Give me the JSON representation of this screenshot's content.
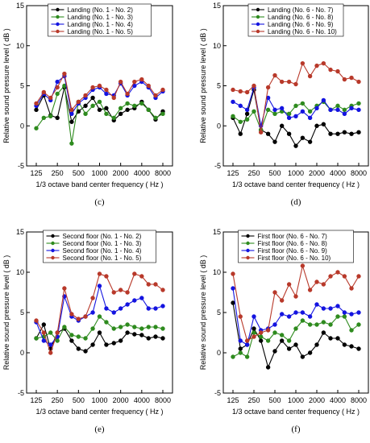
{
  "figure": {
    "colors": {
      "black": "#000000",
      "green": "#2e8b1e",
      "blue": "#1414e0",
      "red": "#b8392a"
    }
  },
  "chart_data": [
    {
      "type": "line",
      "panel_label": "(c)",
      "xlabel": "1/3 octave band center frequency ( Hz )",
      "ylabel": "Relative sound pressure level ( dB )",
      "x_tick_labels": [
        "125",
        "250",
        "500",
        "1000",
        "2000",
        "4000",
        "8000"
      ],
      "ylim": [
        -5,
        15
      ],
      "y_ticks": [
        -5,
        0,
        5,
        10,
        15
      ],
      "x": [
        125,
        160,
        200,
        250,
        315,
        400,
        500,
        630,
        800,
        1000,
        1250,
        1600,
        2000,
        2500,
        3150,
        4000,
        5000,
        6300,
        8000
      ],
      "series": [
        {
          "name": "Landing (No. 1 - No. 2)",
          "color": "#000000",
          "values": [
            2.0,
            3.8,
            1.3,
            1.0,
            4.8,
            0.5,
            1.8,
            2.5,
            3.5,
            2.0,
            2.2,
            0.7,
            1.5,
            2.0,
            2.2,
            3.0,
            2.0,
            0.8,
            1.8
          ]
        },
        {
          "name": "Landing (No. 1 - No. 3)",
          "color": "#2e8b1e",
          "values": [
            -0.3,
            1.0,
            1.2,
            4.0,
            5.0,
            -2.2,
            3.0,
            1.5,
            2.5,
            3.0,
            1.5,
            1.0,
            2.2,
            2.8,
            2.5,
            2.8,
            2.0,
            1.0,
            1.5
          ]
        },
        {
          "name": "Landing (No. 1 - No. 4)",
          "color": "#1414e0",
          "values": [
            2.5,
            4.0,
            3.2,
            5.5,
            6.2,
            1.5,
            2.8,
            3.5,
            4.5,
            4.8,
            4.0,
            3.8,
            5.3,
            3.8,
            5.0,
            5.5,
            4.8,
            3.5,
            4.3
          ]
        },
        {
          "name": "Landing (No. 1 - No. 5)",
          "color": "#b8392a",
          "values": [
            2.8,
            4.2,
            3.5,
            4.8,
            6.5,
            2.0,
            3.0,
            3.8,
            4.8,
            5.0,
            4.5,
            3.5,
            5.5,
            4.0,
            5.5,
            5.8,
            5.0,
            3.8,
            4.5
          ]
        }
      ]
    },
    {
      "type": "line",
      "panel_label": "(d)",
      "xlabel": "1/3 octave band center frequency ( Hz )",
      "ylabel": "Relative sound pressure level ( dB )",
      "x_tick_labels": [
        "125",
        "250",
        "500",
        "1000",
        "2000",
        "4000",
        "8000"
      ],
      "ylim": [
        -5,
        15
      ],
      "y_ticks": [
        -5,
        0,
        5,
        10,
        15
      ],
      "x": [
        125,
        160,
        200,
        250,
        315,
        400,
        500,
        630,
        800,
        1000,
        1250,
        1600,
        2000,
        2500,
        3150,
        4000,
        5000,
        6300,
        8000
      ],
      "series": [
        {
          "name": "Landing (No. 6 - No. 7)",
          "color": "#000000",
          "values": [
            1.0,
            -1.0,
            1.5,
            4.5,
            -0.5,
            -1.0,
            -2.0,
            0.0,
            -1.0,
            -2.5,
            -1.5,
            -2.0,
            0.0,
            0.2,
            -1.0,
            -1.0,
            -0.8,
            -1.0,
            -0.8
          ]
        },
        {
          "name": "Landing (No. 6 - No. 8)",
          "color": "#2e8b1e",
          "values": [
            1.2,
            0.5,
            0.8,
            1.8,
            -0.5,
            2.0,
            1.5,
            1.8,
            1.5,
            2.5,
            2.8,
            1.8,
            2.5,
            3.0,
            2.0,
            2.5,
            2.0,
            2.5,
            2.8
          ]
        },
        {
          "name": "Landing (No. 6 - No. 9)",
          "color": "#1414e0",
          "values": [
            3.0,
            2.5,
            2.0,
            4.8,
            0.0,
            3.5,
            2.0,
            2.2,
            1.0,
            1.2,
            1.8,
            1.0,
            2.2,
            3.2,
            2.0,
            2.0,
            1.5,
            2.2,
            2.0
          ]
        },
        {
          "name": "Landing (No. 6 - No. 10)",
          "color": "#b8392a",
          "values": [
            4.5,
            4.3,
            4.2,
            5.0,
            -0.8,
            4.8,
            6.3,
            5.5,
            5.5,
            5.2,
            7.8,
            6.2,
            7.5,
            7.8,
            7.0,
            6.8,
            5.8,
            6.0,
            5.5
          ]
        }
      ]
    },
    {
      "type": "line",
      "panel_label": "(e)",
      "xlabel": "1/3 octave band center frequency ( Hz )",
      "ylabel": "Relative sound pressure level ( dB )",
      "x_tick_labels": [
        "125",
        "250",
        "500",
        "1000",
        "2000",
        "4000",
        "8000"
      ],
      "ylim": [
        -5,
        15
      ],
      "y_ticks": [
        -5,
        0,
        5,
        10,
        15
      ],
      "x": [
        125,
        160,
        200,
        250,
        315,
        400,
        500,
        630,
        800,
        1000,
        1250,
        1600,
        2000,
        2500,
        3150,
        4000,
        5000,
        6300,
        8000
      ],
      "series": [
        {
          "name": "Second floor (No. 1 - No. 2)",
          "color": "#000000",
          "values": [
            1.8,
            3.5,
            0.5,
            2.5,
            3.0,
            1.5,
            0.5,
            0.2,
            1.0,
            2.5,
            1.0,
            1.2,
            1.5,
            2.5,
            2.3,
            2.2,
            1.8,
            2.0,
            1.8
          ]
        },
        {
          "name": "Second floor (No. 1 - No. 3)",
          "color": "#2e8b1e",
          "values": [
            1.8,
            2.0,
            2.5,
            1.5,
            3.2,
            2.2,
            2.0,
            1.8,
            3.0,
            4.5,
            3.8,
            3.0,
            3.2,
            3.5,
            3.2,
            3.0,
            3.2,
            3.2,
            3.0
          ]
        },
        {
          "name": "Second floor (No. 1 - No. 4)",
          "color": "#1414e0",
          "values": [
            3.8,
            1.5,
            1.0,
            2.0,
            7.0,
            4.5,
            4.0,
            4.5,
            5.0,
            8.3,
            5.5,
            5.0,
            5.5,
            6.0,
            6.5,
            6.8,
            5.5,
            5.5,
            5.8
          ]
        },
        {
          "name": "Second floor (No. 1 - No. 5)",
          "color": "#b8392a",
          "values": [
            4.0,
            2.5,
            0.0,
            2.5,
            8.0,
            4.8,
            4.2,
            4.5,
            6.8,
            9.8,
            9.5,
            7.5,
            7.8,
            7.5,
            9.8,
            9.5,
            8.5,
            8.5,
            7.8
          ]
        }
      ]
    },
    {
      "type": "line",
      "panel_label": "(f)",
      "xlabel": "1/3 octave band center frequency ( Hz )",
      "ylabel": "Relative sound pressure level ( dB )",
      "x_tick_labels": [
        "125",
        "250",
        "500",
        "1000",
        "2000",
        "4000",
        "8000"
      ],
      "ylim": [
        -5,
        15
      ],
      "y_ticks": [
        -5,
        0,
        5,
        10,
        15
      ],
      "x": [
        125,
        160,
        200,
        250,
        315,
        400,
        500,
        630,
        800,
        1000,
        1250,
        1600,
        2000,
        2500,
        3150,
        4000,
        5000,
        6300,
        8000
      ],
      "series": [
        {
          "name": "First floor (No. 6 - No. 7)",
          "color": "#000000",
          "values": [
            6.2,
            0.5,
            1.0,
            3.0,
            1.5,
            -1.8,
            0.2,
            1.5,
            0.5,
            1.0,
            -0.5,
            0.0,
            1.0,
            2.5,
            1.8,
            1.8,
            1.0,
            0.8,
            0.5
          ]
        },
        {
          "name": "First floor (No. 6 - No. 8)",
          "color": "#2e8b1e",
          "values": [
            -0.5,
            0.0,
            -0.5,
            2.5,
            2.0,
            1.5,
            2.5,
            2.2,
            1.5,
            3.0,
            4.0,
            3.5,
            3.5,
            3.8,
            3.5,
            4.5,
            4.5,
            2.8,
            3.5
          ]
        },
        {
          "name": "First floor (No. 6 - No. 9)",
          "color": "#1414e0",
          "values": [
            8.0,
            1.5,
            1.0,
            4.5,
            2.8,
            3.0,
            3.5,
            4.8,
            4.5,
            5.0,
            5.0,
            4.5,
            6.0,
            5.5,
            5.5,
            5.8,
            5.0,
            4.8,
            5.0
          ]
        },
        {
          "name": "First floor (No. 6 - No. 10)",
          "color": "#b8392a",
          "values": [
            9.8,
            4.5,
            1.5,
            2.0,
            2.5,
            2.8,
            7.5,
            6.5,
            8.5,
            7.0,
            10.8,
            7.8,
            8.8,
            8.5,
            9.5,
            10.0,
            9.5,
            8.0,
            9.5
          ]
        }
      ]
    }
  ]
}
